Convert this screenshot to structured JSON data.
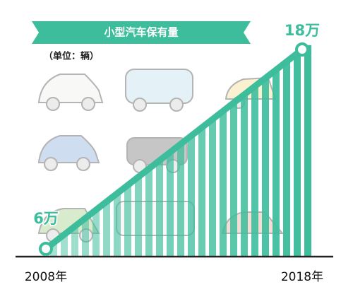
{
  "chart_data": {
    "type": "line",
    "title": "小型汽车保有量",
    "subtitle": "（单位：辆）",
    "categories": [
      "2008年",
      "2018年"
    ],
    "values": [
      6,
      18
    ],
    "value_labels": [
      "6万",
      "18万"
    ],
    "color": "#3dbd9c"
  }
}
